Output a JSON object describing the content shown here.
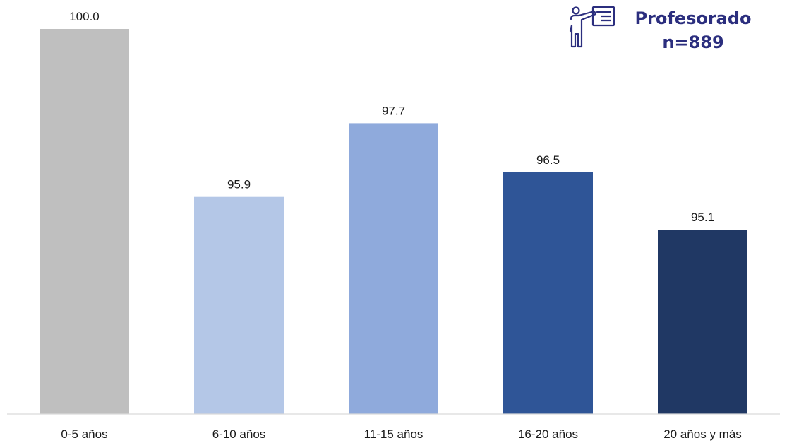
{
  "legend": {
    "title": "Profesorado",
    "n_label": "n=889",
    "icon": "teacher-presentation-icon",
    "color": "#2b2e7e"
  },
  "chart_data": {
    "type": "bar",
    "categories": [
      "0-5 años",
      "6-10 años",
      "11-15 años",
      "16-20 años",
      "20 años y más"
    ],
    "values": [
      100.0,
      95.9,
      97.7,
      96.5,
      95.1
    ],
    "value_labels": [
      "100.0",
      "95.9",
      "97.7",
      "96.5",
      "95.1"
    ],
    "colors": [
      "#bfbfbf",
      "#b4c7e7",
      "#8faadc",
      "#2f5597",
      "#203864"
    ],
    "ylim": [
      90.6,
      100.0
    ],
    "grid": false,
    "legend_position": "top-right"
  }
}
